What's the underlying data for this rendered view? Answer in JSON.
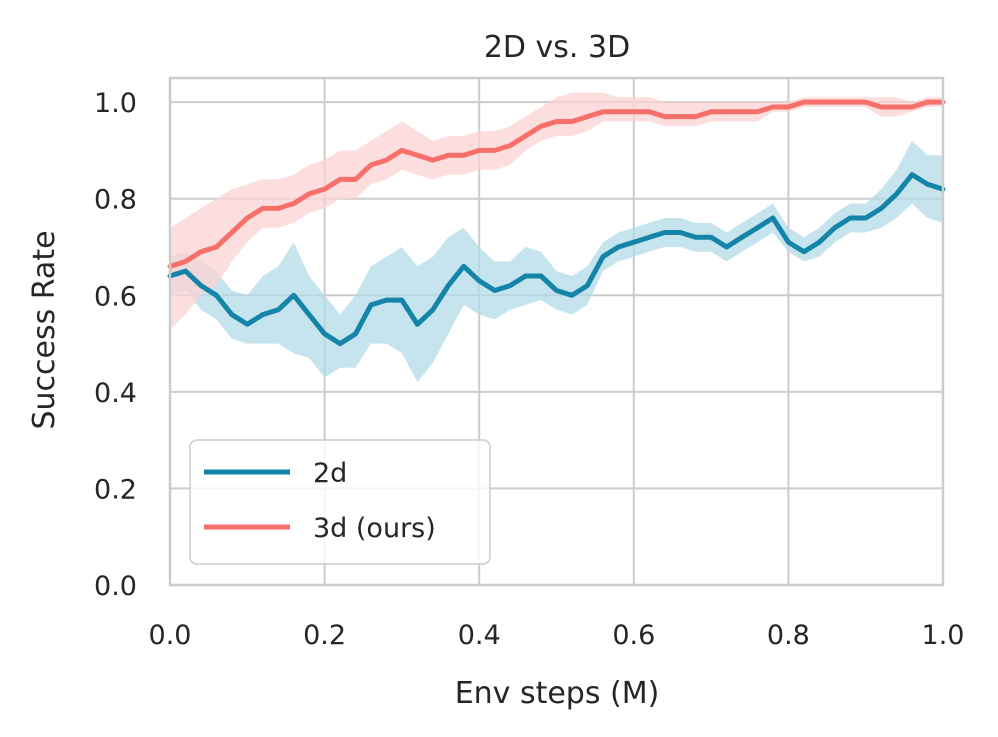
{
  "chart_data": {
    "type": "line",
    "title": "2D vs. 3D",
    "xlabel": "Env steps (M)",
    "ylabel": "Success Rate",
    "xlim": [
      0.0,
      1.0
    ],
    "ylim": [
      0.0,
      1.05
    ],
    "xticks": [
      "0.0",
      "0.2",
      "0.4",
      "0.6",
      "0.8",
      "1.0"
    ],
    "yticks": [
      "0.0",
      "0.2",
      "0.4",
      "0.6",
      "0.8",
      "1.0"
    ],
    "grid": true,
    "legend_position": "lower-left",
    "x": [
      0.0,
      0.02,
      0.04,
      0.06,
      0.08,
      0.1,
      0.12,
      0.14,
      0.16,
      0.18,
      0.2,
      0.22,
      0.24,
      0.26,
      0.28,
      0.3,
      0.32,
      0.34,
      0.36,
      0.38,
      0.4,
      0.42,
      0.44,
      0.46,
      0.48,
      0.5,
      0.52,
      0.54,
      0.56,
      0.58,
      0.6,
      0.62,
      0.64,
      0.66,
      0.68,
      0.7,
      0.72,
      0.74,
      0.76,
      0.78,
      0.8,
      0.82,
      0.84,
      0.86,
      0.88,
      0.9,
      0.92,
      0.94,
      0.96,
      0.98,
      1.0
    ],
    "series": [
      {
        "name": "2d",
        "color": "#1485a8",
        "band_color": "#b3dbe8",
        "values": [
          0.64,
          0.65,
          0.62,
          0.6,
          0.56,
          0.54,
          0.56,
          0.57,
          0.6,
          0.56,
          0.52,
          0.5,
          0.52,
          0.58,
          0.59,
          0.59,
          0.54,
          0.57,
          0.62,
          0.66,
          0.63,
          0.61,
          0.62,
          0.64,
          0.64,
          0.61,
          0.6,
          0.62,
          0.68,
          0.7,
          0.71,
          0.72,
          0.73,
          0.73,
          0.72,
          0.72,
          0.7,
          0.72,
          0.74,
          0.76,
          0.71,
          0.69,
          0.71,
          0.74,
          0.76,
          0.76,
          0.78,
          0.81,
          0.85,
          0.83,
          0.82
        ],
        "lower": [
          0.6,
          0.61,
          0.57,
          0.55,
          0.51,
          0.5,
          0.5,
          0.5,
          0.48,
          0.47,
          0.43,
          0.45,
          0.45,
          0.5,
          0.5,
          0.48,
          0.42,
          0.46,
          0.52,
          0.58,
          0.56,
          0.55,
          0.57,
          0.58,
          0.59,
          0.57,
          0.56,
          0.58,
          0.65,
          0.67,
          0.68,
          0.69,
          0.7,
          0.7,
          0.69,
          0.69,
          0.67,
          0.69,
          0.71,
          0.73,
          0.69,
          0.67,
          0.68,
          0.71,
          0.73,
          0.73,
          0.74,
          0.76,
          0.79,
          0.76,
          0.75
        ],
        "upper": [
          0.68,
          0.69,
          0.67,
          0.65,
          0.61,
          0.6,
          0.64,
          0.66,
          0.71,
          0.64,
          0.6,
          0.56,
          0.6,
          0.66,
          0.68,
          0.7,
          0.66,
          0.68,
          0.72,
          0.74,
          0.7,
          0.67,
          0.67,
          0.7,
          0.69,
          0.65,
          0.64,
          0.66,
          0.71,
          0.73,
          0.74,
          0.75,
          0.76,
          0.76,
          0.75,
          0.75,
          0.73,
          0.75,
          0.77,
          0.79,
          0.74,
          0.72,
          0.74,
          0.77,
          0.79,
          0.79,
          0.82,
          0.86,
          0.92,
          0.89,
          0.89
        ]
      },
      {
        "name": "3d (ours)",
        "color": "#f76f6b",
        "band_color": "#fcd3d3",
        "values": [
          0.66,
          0.67,
          0.69,
          0.7,
          0.73,
          0.76,
          0.78,
          0.78,
          0.79,
          0.81,
          0.82,
          0.84,
          0.84,
          0.87,
          0.88,
          0.9,
          0.89,
          0.88,
          0.89,
          0.89,
          0.9,
          0.9,
          0.91,
          0.93,
          0.95,
          0.96,
          0.96,
          0.97,
          0.98,
          0.98,
          0.98,
          0.98,
          0.97,
          0.97,
          0.97,
          0.98,
          0.98,
          0.98,
          0.98,
          0.99,
          0.99,
          1.0,
          1.0,
          1.0,
          1.0,
          1.0,
          0.99,
          0.99,
          0.99,
          1.0,
          1.0
        ],
        "lower": [
          0.53,
          0.56,
          0.6,
          0.62,
          0.67,
          0.71,
          0.74,
          0.74,
          0.75,
          0.77,
          0.78,
          0.8,
          0.8,
          0.83,
          0.84,
          0.86,
          0.85,
          0.84,
          0.85,
          0.85,
          0.86,
          0.86,
          0.87,
          0.9,
          0.92,
          0.93,
          0.93,
          0.94,
          0.96,
          0.96,
          0.96,
          0.96,
          0.95,
          0.95,
          0.95,
          0.96,
          0.96,
          0.96,
          0.96,
          0.98,
          0.98,
          0.99,
          0.99,
          0.99,
          0.99,
          0.99,
          0.97,
          0.97,
          0.98,
          0.99,
          0.99
        ],
        "upper": [
          0.74,
          0.76,
          0.78,
          0.8,
          0.82,
          0.83,
          0.84,
          0.84,
          0.85,
          0.87,
          0.88,
          0.9,
          0.9,
          0.92,
          0.94,
          0.96,
          0.94,
          0.92,
          0.93,
          0.93,
          0.94,
          0.94,
          0.95,
          0.97,
          0.99,
          1.01,
          1.02,
          1.02,
          1.02,
          1.01,
          1.01,
          1.01,
          1.0,
          1.0,
          1.0,
          1.0,
          1.0,
          1.0,
          1.0,
          1.0,
          1.0,
          1.01,
          1.01,
          1.01,
          1.01,
          1.01,
          1.01,
          1.01,
          1.0,
          1.01,
          1.01
        ]
      }
    ]
  }
}
